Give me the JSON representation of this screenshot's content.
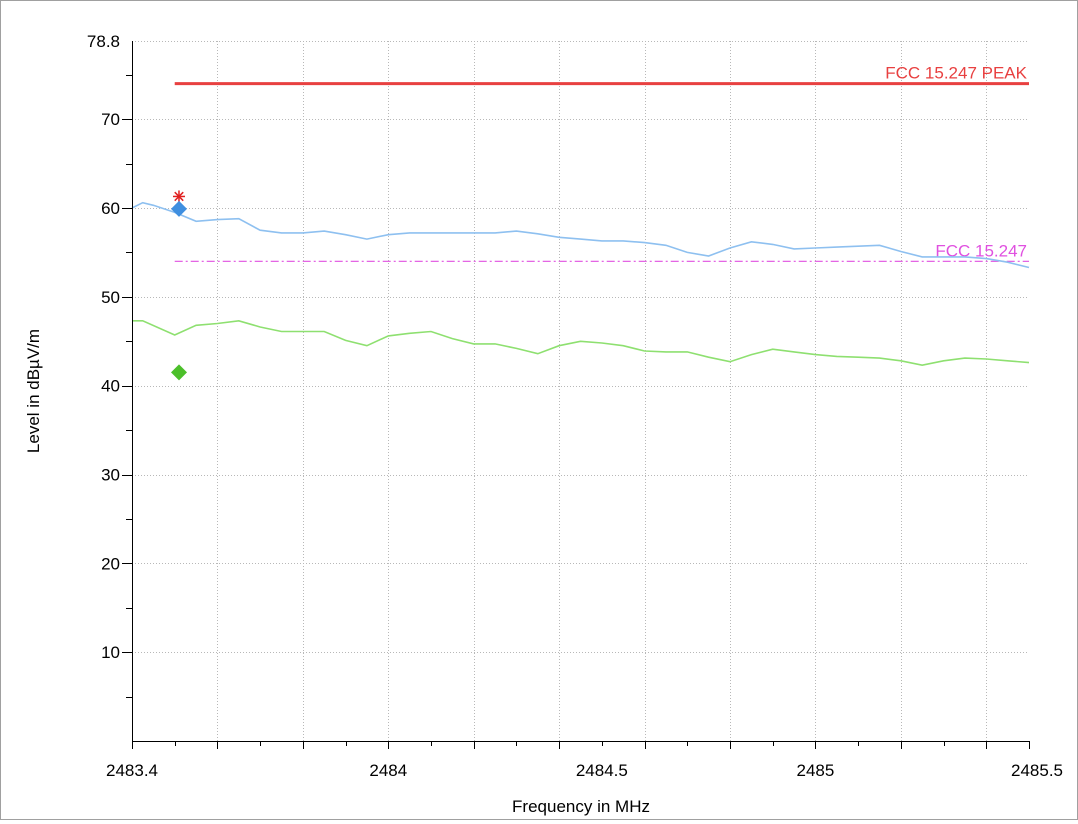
{
  "chart_data": {
    "type": "line",
    "xlabel": "Frequency in MHz",
    "ylabel": "Level in dBµV/m",
    "xlim": [
      2483.4,
      2485.5
    ],
    "ylim": [
      0,
      78.8
    ],
    "x_ticks": [
      "2483.4",
      "2484",
      "2484.5",
      "2485",
      "2485.5"
    ],
    "x_tick_values": [
      2483.4,
      2484,
      2484.5,
      2485,
      2485.5
    ],
    "y_ticks": [
      "78.8",
      "70",
      "60",
      "50",
      "40",
      "30",
      "20",
      "10"
    ],
    "y_tick_values": [
      78.8,
      70,
      60,
      50,
      40,
      30,
      20,
      10
    ],
    "grid": true,
    "limit_lines": [
      {
        "name": "FCC 15.247 PEAK",
        "value": 74.0,
        "x_start": 2483.5,
        "x_end": 2485.5,
        "color": "#e84040",
        "style": "solid"
      },
      {
        "name": "FCC 15.247",
        "value": 54.0,
        "x_start": 2483.5,
        "x_end": 2485.5,
        "color": "#e050e0",
        "style": "dashdot"
      }
    ],
    "series": [
      {
        "color": "#8ec0f0",
        "x": [
          2483.4,
          2483.425,
          2483.45,
          2483.5,
          2483.55,
          2483.6,
          2483.65,
          2483.7,
          2483.75,
          2483.8,
          2483.85,
          2483.9,
          2483.95,
          2484.0,
          2484.05,
          2484.1,
          2484.15,
          2484.2,
          2484.25,
          2484.3,
          2484.35,
          2484.4,
          2484.45,
          2484.5,
          2484.55,
          2484.6,
          2484.65,
          2484.7,
          2484.75,
          2484.8,
          2484.85,
          2484.9,
          2484.95,
          2485.0,
          2485.05,
          2485.1,
          2485.15,
          2485.2,
          2485.25,
          2485.3,
          2485.35,
          2485.4,
          2485.45,
          2485.5
        ],
        "y": [
          60.0,
          60.6,
          60.3,
          59.5,
          58.5,
          58.7,
          58.8,
          57.5,
          57.2,
          57.2,
          57.4,
          57.0,
          56.5,
          57.0,
          57.2,
          57.2,
          57.2,
          57.2,
          57.2,
          57.4,
          57.1,
          56.7,
          56.5,
          56.3,
          56.3,
          56.1,
          55.8,
          55.0,
          54.6,
          55.5,
          56.2,
          55.9,
          55.4,
          55.5,
          55.6,
          55.7,
          55.8,
          55.1,
          54.5,
          54.5,
          54.5,
          54.3,
          53.9,
          53.3
        ]
      },
      {
        "color": "#8ee070",
        "x": [
          2483.4,
          2483.425,
          2483.5,
          2483.55,
          2483.6,
          2483.65,
          2483.7,
          2483.75,
          2483.8,
          2483.85,
          2483.9,
          2483.95,
          2484.0,
          2484.05,
          2484.1,
          2484.15,
          2484.2,
          2484.25,
          2484.3,
          2484.35,
          2484.4,
          2484.45,
          2484.5,
          2484.55,
          2484.6,
          2484.65,
          2484.7,
          2484.75,
          2484.8,
          2484.85,
          2484.9,
          2484.95,
          2485.0,
          2485.05,
          2485.1,
          2485.15,
          2485.2,
          2485.25,
          2485.3,
          2485.35,
          2485.4,
          2485.45,
          2485.5
        ],
        "y": [
          47.3,
          47.3,
          45.7,
          46.8,
          47.0,
          47.3,
          46.6,
          46.1,
          46.1,
          46.1,
          45.1,
          44.5,
          45.6,
          45.9,
          46.1,
          45.3,
          44.7,
          44.7,
          44.2,
          43.6,
          44.5,
          45.0,
          44.8,
          44.5,
          43.9,
          43.8,
          43.8,
          43.2,
          42.7,
          43.5,
          44.1,
          43.8,
          43.5,
          43.3,
          43.2,
          43.1,
          42.8,
          42.3,
          42.8,
          43.1,
          43.0,
          42.8,
          42.6
        ]
      }
    ],
    "markers": [
      {
        "shape": "asterisk",
        "color": "#e02020",
        "x": 2483.51,
        "y": 61.3
      },
      {
        "shape": "diamond",
        "color": "#3f8fe0",
        "x": 2483.51,
        "y": 59.9
      },
      {
        "shape": "diamond",
        "color": "#4cbf2a",
        "x": 2483.51,
        "y": 41.5
      }
    ]
  }
}
